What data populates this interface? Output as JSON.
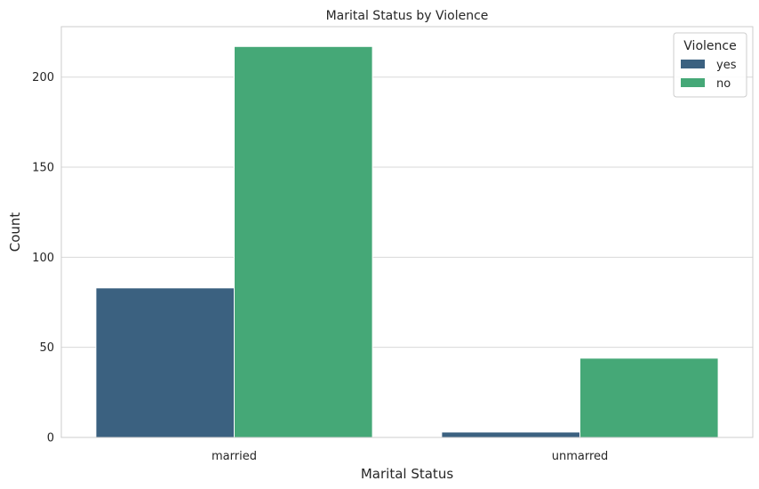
{
  "chart_data": {
    "type": "bar",
    "title": "Marital Status by Violence",
    "xlabel": "Marital Status",
    "ylabel": "Count",
    "categories": [
      "married",
      "unmarred"
    ],
    "series": [
      {
        "name": "yes",
        "values": [
          83,
          3
        ],
        "color": "#3b6180"
      },
      {
        "name": "no",
        "values": [
          217,
          44
        ],
        "color": "#45a877"
      }
    ],
    "ylim": [
      0,
      228
    ],
    "yticks": [
      0,
      50,
      100,
      150,
      200
    ],
    "grid": true,
    "legend": {
      "title": "Violence",
      "placement": "top-right"
    }
  }
}
